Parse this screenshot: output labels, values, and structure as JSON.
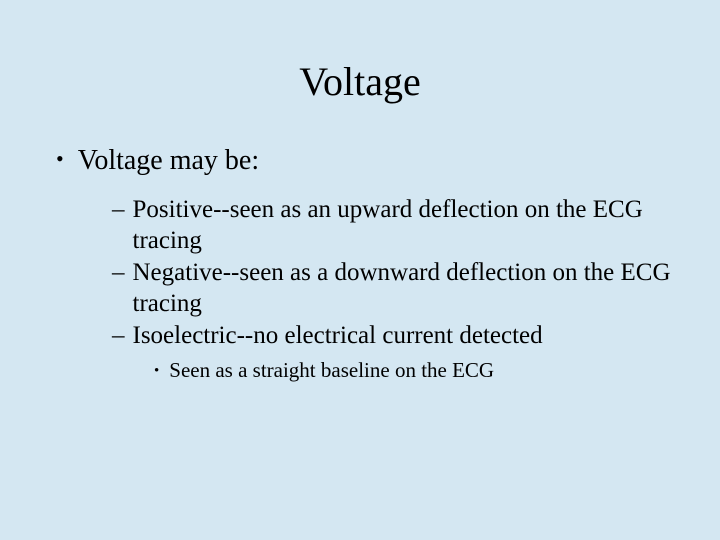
{
  "slide": {
    "background_color": "#d4e7f2",
    "text_color": "#000000",
    "font_family": "Times New Roman",
    "title": {
      "text": "Voltage",
      "fontsize": 40,
      "align": "center"
    },
    "bullets": {
      "level1": {
        "marker": "•",
        "fontsize": 28,
        "items": [
          {
            "text": "Voltage may be:"
          }
        ]
      },
      "level2": {
        "marker": "–",
        "fontsize": 25,
        "items": [
          {
            "text": "Positive--seen as an upward deflection on the ECG tracing"
          },
          {
            "text": "Negative--seen as a downward deflection on the ECG tracing"
          },
          {
            "text": "Isoelectric--no electrical current detected"
          }
        ]
      },
      "level3": {
        "marker": "•",
        "fontsize": 21,
        "items": [
          {
            "text": "Seen as a straight baseline on the ECG"
          }
        ]
      }
    }
  }
}
